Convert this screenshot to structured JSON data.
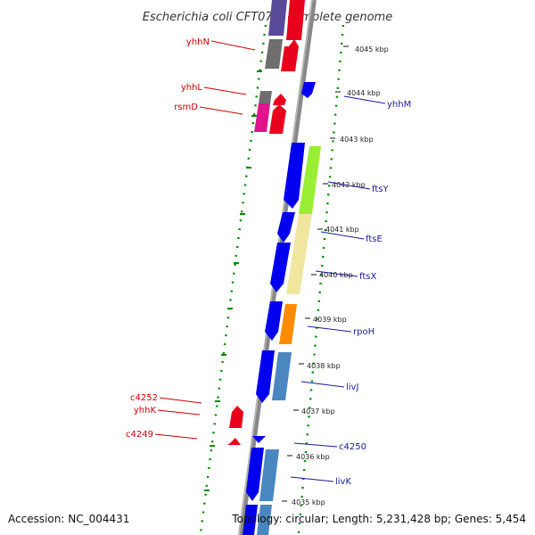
{
  "title": "Escherichia coli CFT073, complete genome",
  "accession": "Accession: NC_004431",
  "topology": "Topology: circular; Length: 5,231,428 bp; Genes: 5,454",
  "ticks": [
    "4045 kbp",
    "4044 kbp",
    "4043 kbp",
    "4042 kbp",
    "4041 kbp",
    "4040 kbp",
    "4039 kbp",
    "4038 kbp",
    "4037 kbp",
    "4036 kbp",
    "4035 kbp"
  ],
  "left_labels": [
    "yhhN",
    "yhhL",
    "rsmD",
    "c4252",
    "yhhK",
    "c4249"
  ],
  "right_labels": [
    "yhhM",
    "ftsY",
    "ftsE",
    "ftsX",
    "rpoH",
    "livJ",
    "c4250",
    "livK"
  ],
  "colors": {
    "backbone": "#8a8a8a",
    "gene_forward": "#e8001c",
    "gene_reverse": "#0000ee",
    "cog_gray": "#6e6e6e",
    "cog_magenta": "#e0148c",
    "cog_lime": "#99ee33",
    "cog_khaki": "#f0e6a0",
    "cog_orange": "#ff8c00",
    "cog_steelblue": "#4a86c0",
    "dotted_ring": "#008800",
    "label_red": "#cc0000",
    "label_blue": "#1a1a99"
  }
}
